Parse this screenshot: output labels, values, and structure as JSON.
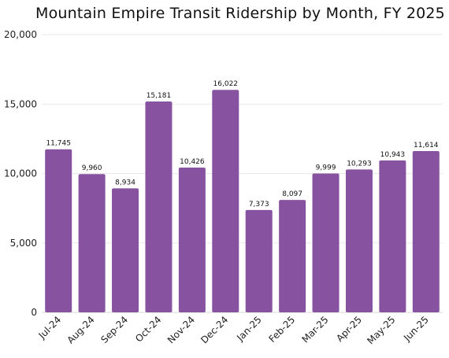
{
  "chart_data": {
    "type": "bar",
    "title": "Mountain Empire Transit Ridership by Month, FY 2025",
    "xlabel": "",
    "ylabel": "",
    "categories": [
      "Jul-24",
      "Aug-24",
      "Sep-24",
      "Oct-24",
      "Nov-24",
      "Dec-24",
      "Jan-25",
      "Feb-25",
      "Mar-25",
      "Apr-25",
      "May-25",
      "Jun-25"
    ],
    "values": [
      11745,
      9960,
      8934,
      15181,
      10426,
      16022,
      7373,
      8097,
      9999,
      10293,
      10943,
      11614
    ],
    "data_labels": [
      "11,745",
      "9,960",
      "8,934",
      "15,181",
      "10,426",
      "16,022",
      "7,373",
      "8,097",
      "9,999",
      "10,293",
      "10,943",
      "11,614"
    ],
    "ylim": [
      0,
      20000
    ],
    "yticks": [
      0,
      5000,
      10000,
      15000,
      20000
    ],
    "ytick_labels": [
      "0",
      "5,000",
      "10,000",
      "15,000",
      "20,000"
    ],
    "grid": true,
    "legend": "none",
    "bar_color": "#8753a1"
  }
}
